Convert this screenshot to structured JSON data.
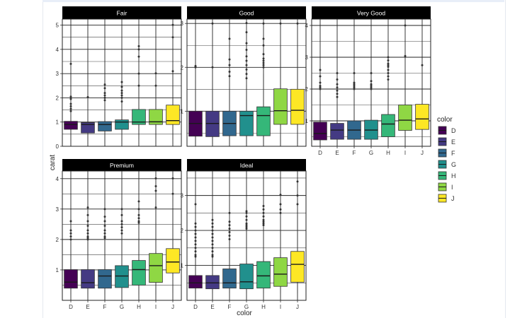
{
  "chart_data": {
    "type": "boxplot",
    "facet_variable": "cut",
    "xlabel": "color",
    "ylabel": "carat",
    "legend": {
      "title": "color",
      "position": "right",
      "entries": [
        "D",
        "E",
        "F",
        "G",
        "H",
        "I",
        "J"
      ]
    },
    "colors": {
      "D": "#440154",
      "E": "#443a83",
      "F": "#31688e",
      "G": "#21908d",
      "H": "#35b779",
      "I": "#8fd744",
      "J": "#fde725"
    },
    "categories": [
      "D",
      "E",
      "F",
      "G",
      "H",
      "I",
      "J"
    ],
    "panels": [
      {
        "title": "Fair",
        "ylim": [
          0,
          5.25
        ],
        "yticks": [
          0,
          1,
          2,
          3,
          4,
          5
        ],
        "boxes": [
          {
            "color": "D",
            "q1": 0.7,
            "median": 0.9,
            "q3": 1.03,
            "lower": 0.25,
            "upper": 1.3,
            "outliers": [
              1.45,
              1.55,
              1.65,
              1.75,
              1.95,
              2.05,
              3.4
            ]
          },
          {
            "color": "E",
            "q1": 0.55,
            "median": 0.9,
            "q3": 0.98,
            "lower": 0.25,
            "upper": 1.1,
            "outliers": [
              2.03
            ]
          },
          {
            "color": "F",
            "q1": 0.63,
            "median": 0.9,
            "q3": 1.02,
            "lower": 0.25,
            "upper": 1.4,
            "outliers": [
              1.9,
              2.0,
              2.1,
              2.2,
              2.4,
              2.55
            ]
          },
          {
            "color": "G",
            "q1": 0.7,
            "median": 1.0,
            "q3": 1.09,
            "lower": 0.25,
            "upper": 1.55,
            "outliers": [
              1.85,
              2.0,
              2.1,
              2.2,
              2.3,
              2.45,
              2.65
            ]
          },
          {
            "color": "H",
            "q1": 0.9,
            "median": 1.0,
            "q3": 1.52,
            "lower": 0.3,
            "upper": 2.3,
            "outliers": [
              2.5,
              3.0,
              3.7,
              4.0,
              4.13
            ]
          },
          {
            "color": "I",
            "q1": 0.9,
            "median": 1.01,
            "q3": 1.52,
            "lower": 0.3,
            "upper": 2.3,
            "outliers": [
              2.5,
              3.01
            ]
          },
          {
            "color": "J",
            "q1": 0.9,
            "median": 1.06,
            "q3": 1.7,
            "lower": 0.3,
            "upper": 2.5,
            "outliers": [
              3.1,
              4.5,
              5.01
            ]
          }
        ]
      },
      {
        "title": "Good",
        "ylim": [
          0.2,
          3.1
        ],
        "yticks": [
          1,
          2,
          3
        ],
        "boxes": [
          {
            "color": "D",
            "q1": 0.43,
            "median": 0.72,
            "q3": 1.0,
            "lower": 0.23,
            "upper": 1.7,
            "outliers": [
              2.0,
              2.01,
              2.03
            ]
          },
          {
            "color": "E",
            "q1": 0.42,
            "median": 0.72,
            "q3": 1.0,
            "lower": 0.23,
            "upper": 1.7,
            "outliers": [
              2.0,
              3.0
            ]
          },
          {
            "color": "F",
            "q1": 0.44,
            "median": 0.72,
            "q3": 1.0,
            "lower": 0.23,
            "upper": 1.7,
            "outliers": [
              1.8,
              1.9,
              2.05,
              2.18,
              2.65
            ]
          },
          {
            "color": "G",
            "q1": 0.44,
            "median": 0.9,
            "q3": 1.0,
            "lower": 0.23,
            "upper": 1.6,
            "outliers": [
              1.75,
              1.85,
              1.95,
              2.05,
              2.15,
              2.25,
              2.4,
              2.55,
              2.8,
              3.01
            ]
          },
          {
            "color": "H",
            "q1": 0.44,
            "median": 0.9,
            "q3": 1.1,
            "lower": 0.23,
            "upper": 1.85,
            "outliers": [
              2.0,
              2.05,
              2.1,
              2.15,
              2.2,
              2.3,
              2.5,
              2.65,
              3.0
            ]
          },
          {
            "color": "I",
            "q1": 0.7,
            "median": 1.01,
            "q3": 1.51,
            "lower": 0.23,
            "upper": 2.5,
            "outliers": [
              3.0
            ]
          },
          {
            "color": "J",
            "q1": 0.7,
            "median": 1.02,
            "q3": 1.5,
            "lower": 0.25,
            "upper": 2.5,
            "outliers": [
              3.0
            ]
          }
        ]
      },
      {
        "title": "Very Good",
        "ylim": [
          0.2,
          4.2
        ],
        "yticks": [
          1,
          2,
          3,
          4
        ],
        "boxes": [
          {
            "color": "D",
            "q1": 0.4,
            "median": 0.6,
            "q3": 0.96,
            "lower": 0.23,
            "upper": 1.7,
            "outliers": [
              2.0,
              2.05,
              2.1,
              2.2,
              2.4,
              2.6
            ]
          },
          {
            "color": "E",
            "q1": 0.42,
            "median": 0.71,
            "q3": 0.92,
            "lower": 0.23,
            "upper": 1.6,
            "outliers": [
              1.75,
              1.85,
              1.95,
              2.05,
              2.15,
              2.3,
              2.5
            ]
          },
          {
            "color": "F",
            "q1": 0.42,
            "median": 0.71,
            "q3": 1.0,
            "lower": 0.23,
            "upper": 1.7,
            "outliers": [
              2.0,
              2.05,
              2.1,
              2.15,
              2.2,
              2.5
            ]
          },
          {
            "color": "G",
            "q1": 0.42,
            "median": 0.71,
            "q3": 1.02,
            "lower": 0.23,
            "upper": 1.7,
            "outliers": [
              2.0,
              2.05,
              2.1,
              2.15,
              2.25,
              2.5
            ]
          },
          {
            "color": "H",
            "q1": 0.5,
            "median": 0.9,
            "q3": 1.2,
            "lower": 0.23,
            "upper": 2.2,
            "outliers": [
              2.3,
              2.4,
              2.5,
              2.6,
              2.7,
              2.75,
              2.8,
              2.9,
              3.0
            ]
          },
          {
            "color": "I",
            "q1": 0.7,
            "median": 1.02,
            "q3": 1.5,
            "lower": 0.25,
            "upper": 2.5,
            "outliers": [
              3.04,
              4.0
            ]
          },
          {
            "color": "J",
            "q1": 0.73,
            "median": 1.06,
            "q3": 1.52,
            "lower": 0.28,
            "upper": 2.5,
            "outliers": [
              2.75
            ]
          }
        ]
      },
      {
        "title": "Premium",
        "ylim": [
          0,
          4.25
        ],
        "yticks": [
          1,
          2,
          3,
          4
        ],
        "boxes": [
          {
            "color": "D",
            "q1": 0.4,
            "median": 0.6,
            "q3": 1.01,
            "lower": 0.2,
            "upper": 1.9,
            "outliers": [
              2.0,
              2.1,
              2.2,
              2.3,
              2.6
            ]
          },
          {
            "color": "E",
            "q1": 0.4,
            "median": 0.58,
            "q3": 1.01,
            "lower": 0.2,
            "upper": 1.9,
            "outliers": [
              2.0,
              2.05,
              2.1,
              2.2,
              2.3,
              2.45,
              2.6,
              2.8,
              3.05
            ]
          },
          {
            "color": "F",
            "q1": 0.4,
            "median": 0.8,
            "q3": 1.01,
            "lower": 0.2,
            "upper": 2.0,
            "outliers": [
              2.05,
              2.1,
              2.2,
              2.3,
              2.45,
              2.6,
              2.75,
              3.0
            ]
          },
          {
            "color": "G",
            "q1": 0.42,
            "median": 0.8,
            "q3": 1.14,
            "lower": 0.2,
            "upper": 2.1,
            "outliers": [
              2.2,
              2.3,
              2.4,
              2.5,
              2.6,
              2.8,
              3.0
            ]
          },
          {
            "color": "H",
            "q1": 0.5,
            "median": 1.01,
            "q3": 1.31,
            "lower": 0.2,
            "upper": 2.5,
            "outliers": [
              2.55,
              2.6,
              2.7,
              2.8,
              3.0,
              3.25
            ]
          },
          {
            "color": "I",
            "q1": 0.59,
            "median": 1.14,
            "q3": 1.54,
            "lower": 0.2,
            "upper": 3.0,
            "outliers": [
              3.05,
              3.6,
              3.75,
              4.01
            ]
          },
          {
            "color": "J",
            "q1": 0.9,
            "median": 1.26,
            "q3": 1.7,
            "lower": 0.25,
            "upper": 3.0,
            "outliers": [
              3.5,
              4.01
            ]
          }
        ]
      },
      {
        "title": "Ideal",
        "ylim": [
          0,
          3.7
        ],
        "yticks": [
          1,
          2,
          3
        ],
        "boxes": [
          {
            "color": "D",
            "q1": 0.35,
            "median": 0.5,
            "q3": 0.71,
            "lower": 0.2,
            "upper": 1.2,
            "outliers": [
              1.25,
              1.3,
              1.4,
              1.5,
              1.6,
              1.7,
              1.8,
              1.9,
              2.0,
              2.1,
              2.2,
              2.75
            ]
          },
          {
            "color": "E",
            "q1": 0.33,
            "median": 0.5,
            "q3": 0.71,
            "lower": 0.2,
            "upper": 1.2,
            "outliers": [
              1.25,
              1.3,
              1.4,
              1.5,
              1.6,
              1.7,
              1.8,
              1.9,
              2.0,
              2.1,
              2.2,
              2.3
            ]
          },
          {
            "color": "F",
            "q1": 0.35,
            "median": 0.5,
            "q3": 0.9,
            "lower": 0.2,
            "upper": 1.7,
            "outliers": [
              1.75,
              1.85,
              1.95,
              2.05,
              2.15,
              2.25,
              2.5
            ]
          },
          {
            "color": "G",
            "q1": 0.33,
            "median": 0.53,
            "q3": 1.04,
            "lower": 0.2,
            "upper": 2.0,
            "outliers": [
              2.05,
              2.1,
              2.15,
              2.2,
              2.3,
              2.4,
              2.5,
              2.55
            ]
          },
          {
            "color": "H",
            "q1": 0.35,
            "median": 0.7,
            "q3": 1.11,
            "lower": 0.2,
            "upper": 2.1,
            "outliers": [
              2.15,
              2.2,
              2.25,
              2.3,
              2.4,
              2.5,
              2.6,
              2.7
            ]
          },
          {
            "color": "I",
            "q1": 0.4,
            "median": 0.75,
            "q3": 1.22,
            "lower": 0.2,
            "upper": 2.4,
            "outliers": [
              2.5,
              2.6,
              2.75,
              3.02
            ]
          },
          {
            "color": "J",
            "q1": 0.52,
            "median": 1.03,
            "q3": 1.4,
            "lower": 0.2,
            "upper": 2.6,
            "outliers": [
              2.75,
              3.0,
              3.4
            ]
          }
        ]
      }
    ]
  }
}
